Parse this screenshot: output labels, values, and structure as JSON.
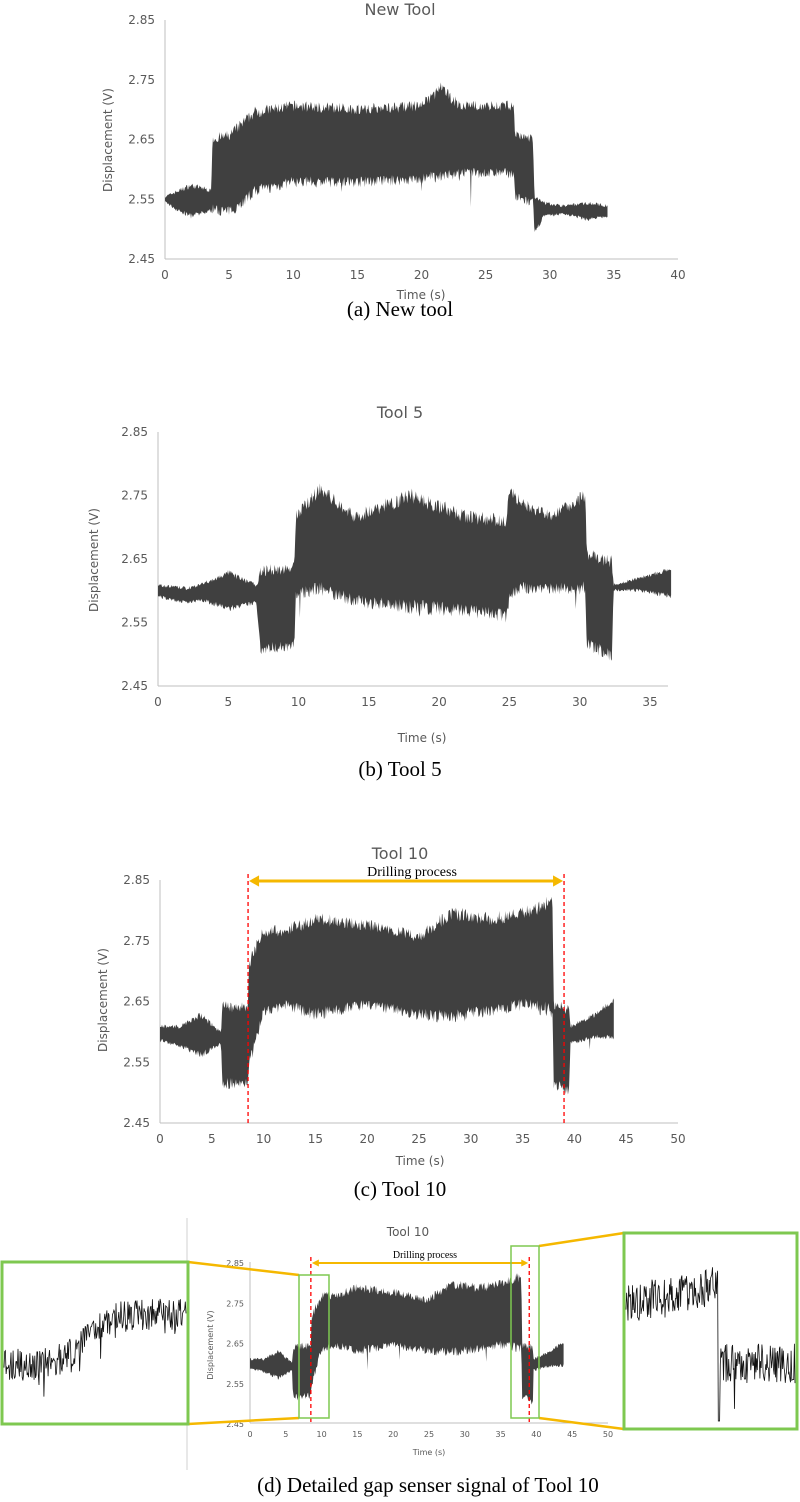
{
  "colors": {
    "signal": "#404040",
    "axis": "#bfbfbf",
    "marker": "#ff0000",
    "arrow": "#f5b800",
    "zoom_box": "#7ec850",
    "zoom_line": "#f5b800"
  },
  "chart_data": [
    {
      "id": "a",
      "type": "area",
      "title": "New Tool",
      "caption": "(a) New tool",
      "xlabel": "Time (s)",
      "ylabel": "Displacement (V)",
      "xlim": [
        0,
        40
      ],
      "ylim": [
        2.45,
        2.85
      ],
      "xticks": [
        0,
        5,
        10,
        15,
        20,
        25,
        30,
        35,
        40
      ],
      "yticks": [
        "2.45",
        "2.55",
        "2.65",
        "2.75",
        "2.85"
      ],
      "grid": false,
      "envelope": {
        "time": [
          0,
          1,
          2,
          3,
          3.6,
          3.7,
          5,
          6,
          7,
          10,
          15,
          20,
          21.5,
          23,
          27.2,
          27.3,
          28.7,
          28.8,
          29.5,
          31,
          33,
          34.5
        ],
        "lower": [
          2.545,
          2.53,
          2.52,
          2.525,
          2.53,
          2.53,
          2.525,
          2.54,
          2.56,
          2.575,
          2.575,
          2.58,
          2.585,
          2.59,
          2.59,
          2.55,
          2.54,
          2.49,
          2.52,
          2.525,
          2.515,
          2.52
        ],
        "upper": [
          2.555,
          2.565,
          2.575,
          2.57,
          2.565,
          2.655,
          2.66,
          2.68,
          2.7,
          2.71,
          2.705,
          2.71,
          2.74,
          2.71,
          2.71,
          2.66,
          2.655,
          2.555,
          2.545,
          2.54,
          2.545,
          2.54
        ]
      }
    },
    {
      "id": "b",
      "type": "area",
      "title": "Tool 5",
      "caption": "(b) Tool 5",
      "xlabel": "Time (s)",
      "ylabel": "Displacement (V)",
      "xlim": [
        0,
        35
      ],
      "ylim": [
        2.45,
        2.85
      ],
      "xticks": [
        0,
        5,
        10,
        15,
        20,
        25,
        30,
        35
      ],
      "yticks": [
        "2.45",
        "2.55",
        "2.65",
        "2.75",
        "2.85"
      ],
      "grid": false,
      "envelope": {
        "time": [
          0,
          2,
          3,
          5,
          7,
          7.3,
          9.7,
          9.8,
          11.5,
          14,
          18,
          22,
          24.8,
          25,
          26,
          28,
          30.4,
          30.5,
          32.3,
          32.4,
          34,
          36.5
        ],
        "lower": [
          2.59,
          2.58,
          2.585,
          2.57,
          2.58,
          2.505,
          2.51,
          2.59,
          2.6,
          2.58,
          2.57,
          2.565,
          2.555,
          2.59,
          2.6,
          2.6,
          2.6,
          2.51,
          2.495,
          2.6,
          2.6,
          2.59
        ],
        "upper": [
          2.61,
          2.605,
          2.61,
          2.63,
          2.61,
          2.635,
          2.64,
          2.72,
          2.765,
          2.72,
          2.755,
          2.72,
          2.715,
          2.76,
          2.74,
          2.72,
          2.755,
          2.66,
          2.65,
          2.61,
          2.62,
          2.635
        ]
      }
    },
    {
      "id": "c",
      "type": "area",
      "title": "Tool 10",
      "caption": "(c) Tool 10",
      "xlabel": "Time (s)",
      "ylabel": "Displacement (V)",
      "xlim": [
        0,
        50
      ],
      "ylim": [
        2.45,
        2.85
      ],
      "xticks": [
        0,
        5,
        10,
        15,
        20,
        25,
        30,
        35,
        40,
        45,
        50
      ],
      "yticks": [
        "2.45",
        "2.55",
        "2.65",
        "2.75",
        "2.85"
      ],
      "grid": false,
      "annotation": {
        "label": "Drilling process",
        "start": 8.5,
        "end": 39
      },
      "envelope": {
        "time": [
          0,
          2,
          4,
          5.9,
          6,
          8.5,
          8.6,
          10,
          12,
          15,
          20,
          25,
          28,
          32,
          35,
          37.9,
          38,
          39.5,
          39.6,
          42,
          43.8
        ],
        "lower": [
          2.585,
          2.575,
          2.56,
          2.58,
          2.51,
          2.515,
          2.54,
          2.63,
          2.64,
          2.625,
          2.64,
          2.625,
          2.62,
          2.63,
          2.64,
          2.63,
          2.51,
          2.5,
          2.58,
          2.59,
          2.59
        ],
        "upper": [
          2.61,
          2.61,
          2.63,
          2.6,
          2.645,
          2.645,
          2.72,
          2.77,
          2.77,
          2.79,
          2.78,
          2.76,
          2.8,
          2.79,
          2.8,
          2.82,
          2.65,
          2.64,
          2.61,
          2.63,
          2.655
        ]
      }
    },
    {
      "id": "d",
      "type": "area",
      "title": "Tool 10",
      "caption": "(d) Detailed gap senser signal of Tool 10",
      "xlabel": "Time (s)",
      "ylabel": "Displacement (V)",
      "xlim": [
        0,
        50
      ],
      "ylim": [
        2.45,
        2.85
      ],
      "xticks": [
        0,
        5,
        10,
        15,
        20,
        25,
        30,
        35,
        40,
        45,
        50
      ],
      "yticks": [
        "2.45",
        "2.55",
        "2.65",
        "2.75",
        "2.85"
      ],
      "grid": false,
      "annotation": {
        "label": "Drilling process",
        "start": 8.5,
        "end": 39
      },
      "zoom_windows": [
        [
          6.8,
          11
        ],
        [
          36,
          40
        ]
      ],
      "envelope": {
        "time": [
          0,
          2,
          4,
          5.9,
          6,
          8.5,
          8.6,
          10,
          12,
          15,
          20,
          25,
          28,
          32,
          35,
          37.9,
          38,
          39.5,
          39.6,
          42,
          43.8
        ],
        "lower": [
          2.585,
          2.575,
          2.56,
          2.58,
          2.51,
          2.515,
          2.54,
          2.63,
          2.64,
          2.625,
          2.64,
          2.625,
          2.62,
          2.63,
          2.64,
          2.63,
          2.51,
          2.5,
          2.58,
          2.59,
          2.59
        ],
        "upper": [
          2.61,
          2.61,
          2.63,
          2.6,
          2.645,
          2.645,
          2.72,
          2.77,
          2.77,
          2.79,
          2.78,
          2.76,
          2.8,
          2.79,
          2.8,
          2.82,
          2.65,
          2.64,
          2.61,
          2.63,
          2.655
        ]
      }
    }
  ]
}
